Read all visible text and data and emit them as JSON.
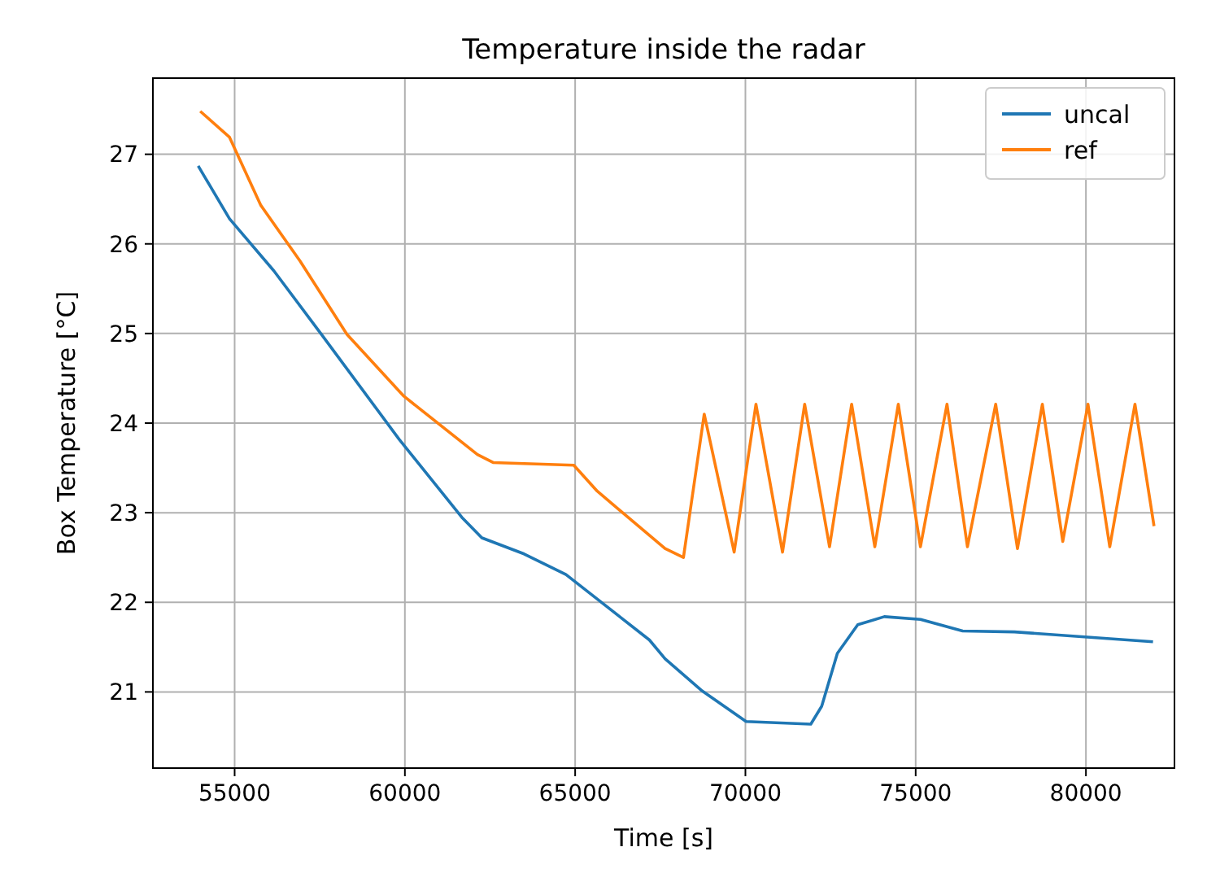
{
  "chart_data": {
    "type": "line",
    "title": "Temperature inside the radar",
    "xlabel": "Time [s]",
    "ylabel": "Box Temperature [°C]",
    "xlim": [
      52600,
      82600
    ],
    "ylim": [
      20.15,
      27.85
    ],
    "xticks": [
      55000,
      60000,
      65000,
      70000,
      75000,
      80000
    ],
    "yticks": [
      21,
      22,
      23,
      24,
      25,
      26,
      27
    ],
    "grid": true,
    "legend": "top right",
    "line_style": "solid",
    "series": [
      {
        "name": "uncal",
        "color": "#1f77b4",
        "x": [
          53930,
          54850,
          56150,
          57530,
          59830,
          61670,
          62260,
          63500,
          64730,
          67180,
          67640,
          68700,
          70020,
          71920,
          72240,
          72700,
          73300,
          74080,
          75140,
          76380,
          77900,
          81970
        ],
        "values": [
          26.87,
          26.28,
          25.7,
          25.0,
          23.82,
          22.95,
          22.72,
          22.54,
          22.31,
          21.58,
          21.37,
          21.02,
          20.67,
          20.64,
          20.84,
          21.43,
          21.75,
          21.84,
          21.81,
          21.68,
          21.67,
          21.56
        ]
      },
      {
        "name": "ref",
        "color": "#ff7f0e",
        "x": [
          53990,
          54850,
          55770,
          56920,
          58300,
          59970,
          62130,
          62590,
          64960,
          65650,
          67640,
          68180,
          68790,
          69670,
          70310,
          71090,
          71740,
          72470,
          73120,
          73800,
          74490,
          75140,
          75920,
          76520,
          77350,
          77990,
          78720,
          79320,
          80060,
          80700,
          81440,
          82000
        ],
        "values": [
          27.48,
          27.19,
          26.43,
          25.81,
          24.99,
          24.3,
          23.65,
          23.56,
          23.53,
          23.24,
          22.6,
          22.5,
          24.1,
          22.56,
          24.21,
          22.56,
          24.21,
          22.62,
          24.21,
          22.62,
          24.21,
          22.62,
          24.21,
          22.62,
          24.21,
          22.6,
          24.21,
          22.68,
          24.21,
          22.62,
          24.21,
          22.85
        ]
      }
    ]
  }
}
